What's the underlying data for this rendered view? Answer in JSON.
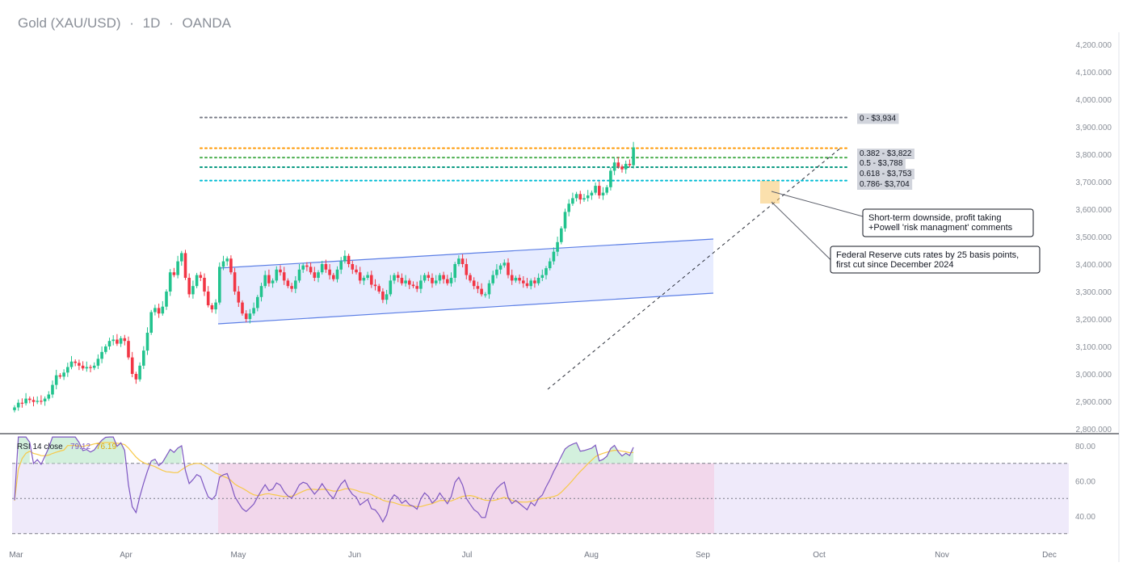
{
  "header": {
    "symbol": "Gold (XAU/USD)",
    "interval": "1D",
    "source": "OANDA",
    "separator": "·"
  },
  "colors": {
    "up": "#22c38e",
    "down": "#f23645",
    "channel_fill": "#dfe5ff",
    "channel_line": "#5b7ee5",
    "rsi_line": "#7e57c2",
    "rsi_ma": "#f7c948",
    "rsi_band": "#efeafa",
    "rsi_zone": "#f2d3e8",
    "fib_0": "#787b86",
    "fib_0382": "#ff9800",
    "fib_05": "#4caf50",
    "fib_0618": "#089981",
    "fib_0786": "#00bcd4"
  },
  "rsi_header": {
    "label": "RSI 14 close",
    "rsi_value": "79.12",
    "ma_value": "76.19"
  },
  "chart_data": {
    "type": "candlestick",
    "title": "Gold (XAU/USD) · 1D · OANDA",
    "y_axis": {
      "ticks": [
        "4,200.000",
        "4,100.000",
        "4,000.000",
        "3,900.000",
        "3,800.000",
        "3,700.000",
        "3,600.000",
        "3,500.000",
        "3,400.000",
        "3,300.000",
        "3,200.000",
        "3,100.000",
        "3,000.000",
        "2,900.000",
        "2,800.000"
      ],
      "ylim": [
        2800,
        4200
      ]
    },
    "x_axis": {
      "ticks": [
        "Mar",
        "Apr",
        "May",
        "Jun",
        "Jul",
        "Aug",
        "Sep",
        "Oct",
        "Nov",
        "Dec"
      ]
    },
    "fib_levels": [
      {
        "level": "0",
        "price": 3934,
        "label": "0 - $3,934"
      },
      {
        "level": "0.382",
        "price": 3822,
        "label": "0.382 - $3,822"
      },
      {
        "level": "0.5",
        "price": 3788,
        "label": "0.5 - $3,788"
      },
      {
        "level": "0.618",
        "price": 3753,
        "label": "0.618 - $3,753"
      },
      {
        "level": "0.786",
        "price": 3704,
        "label": "0.786- $3,704"
      }
    ],
    "annotations": [
      {
        "lines": [
          "Short-term downside, profit taking",
          "+Powell 'risk managment' comments"
        ]
      },
      {
        "lines": [
          "Federal Reserve cuts rates by 25 basis points,",
          "first cut since December 2024"
        ]
      }
    ],
    "rsi": {
      "ticks": [
        "80.00",
        "60.00",
        "40.00"
      ],
      "levels": [
        70,
        50,
        30
      ],
      "last": 79.12,
      "ma_last": 76.19
    },
    "closes": [
      2878,
      2895,
      2893,
      2910,
      2905,
      2898,
      2902,
      2900,
      2910,
      2925,
      2960,
      2995,
      2990,
      3005,
      3025,
      3045,
      3040,
      3030,
      3020,
      3025,
      3022,
      3030,
      3055,
      3080,
      3100,
      3120,
      3125,
      3110,
      3130,
      3120,
      3060,
      3000,
      2980,
      3030,
      3085,
      3150,
      3225,
      3240,
      3220,
      3245,
      3300,
      3370,
      3360,
      3410,
      3440,
      3350,
      3290,
      3320,
      3360,
      3350,
      3300,
      3250,
      3235,
      3260,
      3390,
      3410,
      3420,
      3370,
      3300,
      3260,
      3220,
      3200,
      3220,
      3240,
      3280,
      3320,
      3360,
      3330,
      3340,
      3380,
      3370,
      3340,
      3320,
      3310,
      3340,
      3380,
      3395,
      3390,
      3370,
      3350,
      3370,
      3400,
      3380,
      3360,
      3345,
      3380,
      3410,
      3430,
      3400,
      3380,
      3370,
      3340,
      3350,
      3360,
      3325,
      3320,
      3300,
      3270,
      3290,
      3340,
      3360,
      3350,
      3330,
      3340,
      3325,
      3320,
      3310,
      3340,
      3360,
      3350,
      3330,
      3340,
      3360,
      3345,
      3330,
      3350,
      3400,
      3420,
      3400,
      3360,
      3340,
      3320,
      3310,
      3290,
      3290,
      3330,
      3360,
      3380,
      3395,
      3405,
      3360,
      3340,
      3350,
      3340,
      3330,
      3320,
      3340,
      3330,
      3350,
      3360,
      3385,
      3410,
      3445,
      3480,
      3530,
      3590,
      3620,
      3640,
      3655,
      3635,
      3640,
      3650,
      3660,
      3685,
      3650,
      3660,
      3680,
      3740,
      3770,
      3755,
      3745,
      3765,
      3760,
      3825
    ]
  }
}
